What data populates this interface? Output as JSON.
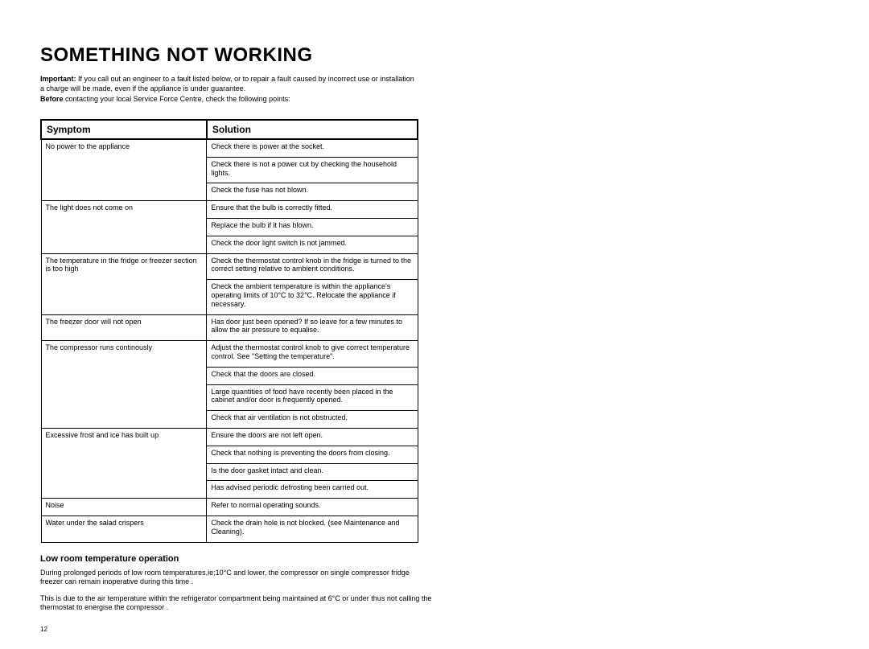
{
  "heading": "SOMETHING NOT WORKING",
  "intro": {
    "line1_bold": "Important:",
    "line1_rest": " If you call out an engineer to a fault listed below, or to repair a fault caused by incorrect use or installation a charge will be made, even if the appliance is under guarantee.",
    "line2_bold": "Before",
    "line2_rest": " contacting your local Service Force Centre, check the following points:"
  },
  "table": {
    "header_symptom": "Symptom",
    "header_solution": "Solution",
    "rows": [
      {
        "symptom": "No power to the appliance",
        "solution": "Check there is power at the socket."
      },
      {
        "symptom": "",
        "solution": "Check there is not a power cut by checking the household lights."
      },
      {
        "symptom": "",
        "solution": "Check the fuse has not blown."
      },
      {
        "symptom": "The light does not come on",
        "solution": "Ensure that the bulb is correctly fitted."
      },
      {
        "symptom": "",
        "solution": "Replace the bulb if it has blown."
      },
      {
        "symptom": "",
        "solution": "Check the door light switch is not jammed."
      },
      {
        "symptom": "The temperature in the fridge or freezer section is too high",
        "solution": "Check the thermostat control knob in the fridge is turned to the correct setting relative to ambient conditions."
      },
      {
        "symptom": "",
        "solution": "Check the ambient temperature is within the appliance's operating limits of 10°C  to 32°C. Relocate the appliance if necessary."
      },
      {
        "symptom": "The freezer door will not open",
        "solution": "Has door just been opened? If so leave for a few minutes to allow the air pressure to equalise."
      },
      {
        "symptom": "The compressor runs continously",
        "solution": "Adjust the thermostat control knob to give correct temperature control. See \"Setting the temperature\"."
      },
      {
        "symptom": "",
        "solution": "Check that the doors are closed."
      },
      {
        "symptom": "",
        "solution": "Large quantities of food have recently been placed in the cabinet and/or door is frequently opened."
      },
      {
        "symptom": "",
        "solution": "Check that air ventilation is not obstructed."
      },
      {
        "symptom": "Excessive frost and ice has built up",
        "solution": "Ensure the doors are not left open."
      },
      {
        "symptom": "",
        "solution": "Check that nothing is preventing the doors from closing."
      },
      {
        "symptom": "",
        "solution": "Is the door gasket intact and clean."
      },
      {
        "symptom": "",
        "solution": "Has advised periodic defrosting been carried out."
      },
      {
        "symptom": "Noise",
        "solution": "Refer to normal operating sounds."
      },
      {
        "symptom": "Water under the salad crispers",
        "solution": "Check the drain hole is not blocked. (see Maintenance and Cleaning)."
      }
    ],
    "rowspans": [
      3,
      0,
      0,
      3,
      0,
      0,
      2,
      0,
      1,
      4,
      0,
      0,
      0,
      4,
      0,
      0,
      0,
      1,
      1
    ]
  },
  "subsection": {
    "heading": "Low room temperature operation",
    "p1": "During prolonged periods of low room temperatures,ie;10°C and lower, the compressor on single compressor fridge freezer can remain inoperative during this time .",
    "p2": "This is due to the air temperature within the refrigerator compartment being maintained at 6°C or under thus not calling the thermostat to energise the compressor ."
  },
  "page_number": "12",
  "colors": {
    "text": "#000000",
    "bg": "#ffffff",
    "border": "#000000"
  }
}
